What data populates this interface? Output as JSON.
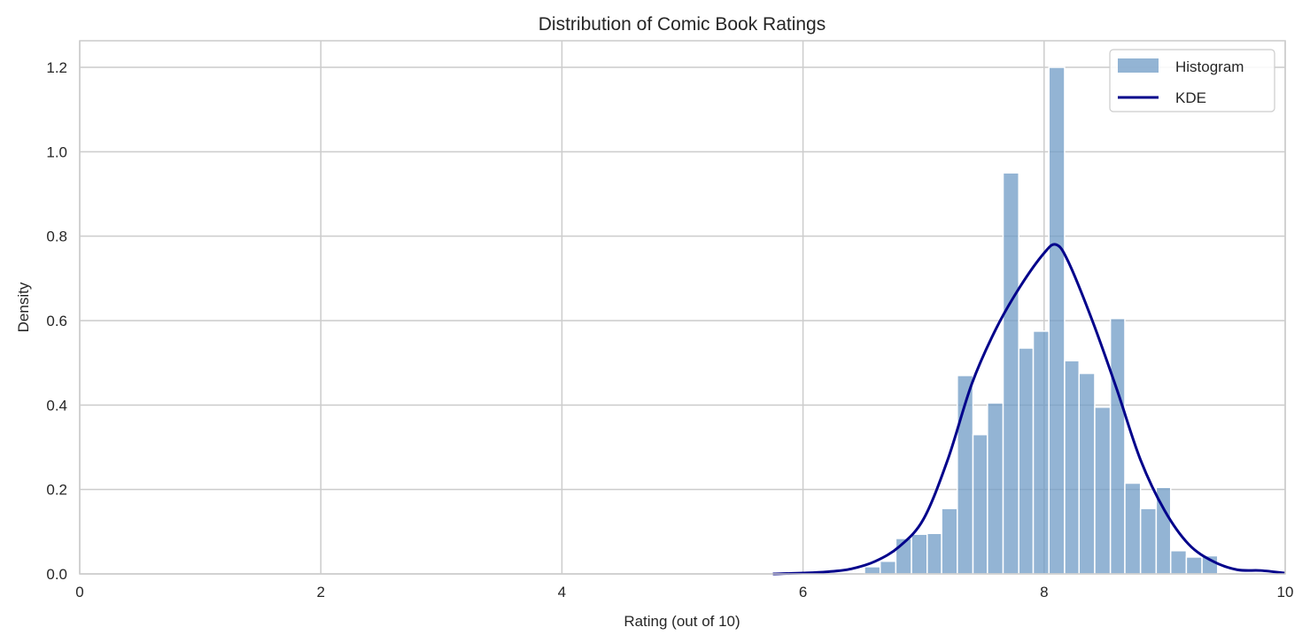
{
  "chart_data": {
    "type": "bar",
    "title": "Distribution of Comic Book Ratings",
    "xlabel": "Rating (out of 10)",
    "ylabel": "Density",
    "xlim": [
      0,
      10
    ],
    "ylim": [
      0,
      1.26
    ],
    "xticks": [
      0,
      2,
      4,
      6,
      8,
      10
    ],
    "yticks": [
      0.0,
      0.2,
      0.4,
      0.6,
      0.8,
      1.0,
      1.2
    ],
    "xtick_labels": [
      "0",
      "2",
      "4",
      "6",
      "8",
      "10"
    ],
    "ytick_labels": [
      "0.0",
      "0.2",
      "0.4",
      "0.6",
      "0.8",
      "1.0",
      "1.2"
    ],
    "grid": true,
    "legend_position": "upper right",
    "legend": [
      "Histogram",
      "KDE"
    ],
    "colors": {
      "histogram": "#6f9bc6",
      "kde": "#00008b",
      "grid": "#cccccc"
    },
    "series": [
      {
        "name": "Histogram",
        "type": "bar",
        "bin_edges": [
          6.51,
          6.64,
          6.77,
          6.9,
          7.03,
          7.15,
          7.28,
          7.41,
          7.53,
          7.66,
          7.79,
          7.91,
          8.04,
          8.17,
          8.29,
          8.42,
          8.55,
          8.67,
          8.8,
          8.93,
          9.05,
          9.18,
          9.31,
          9.44
        ],
        "values": [
          0.017,
          0.03,
          0.084,
          0.094,
          0.096,
          0.155,
          0.47,
          0.33,
          0.405,
          0.95,
          0.535,
          0.575,
          1.2,
          0.505,
          0.475,
          0.395,
          0.605,
          0.215,
          0.155,
          0.205,
          0.055,
          0.04,
          0.043
        ]
      },
      {
        "name": "KDE",
        "type": "line",
        "x": [
          5.75,
          6.0,
          6.2,
          6.4,
          6.6,
          6.8,
          7.0,
          7.2,
          7.4,
          7.6,
          7.8,
          8.0,
          8.1,
          8.2,
          8.4,
          8.6,
          8.8,
          9.0,
          9.2,
          9.4,
          9.6,
          9.8,
          10.0
        ],
        "y": [
          0.0,
          0.002,
          0.005,
          0.012,
          0.03,
          0.065,
          0.13,
          0.27,
          0.45,
          0.58,
          0.68,
          0.76,
          0.78,
          0.74,
          0.6,
          0.44,
          0.27,
          0.15,
          0.07,
          0.03,
          0.01,
          0.008,
          0.002
        ]
      }
    ]
  }
}
